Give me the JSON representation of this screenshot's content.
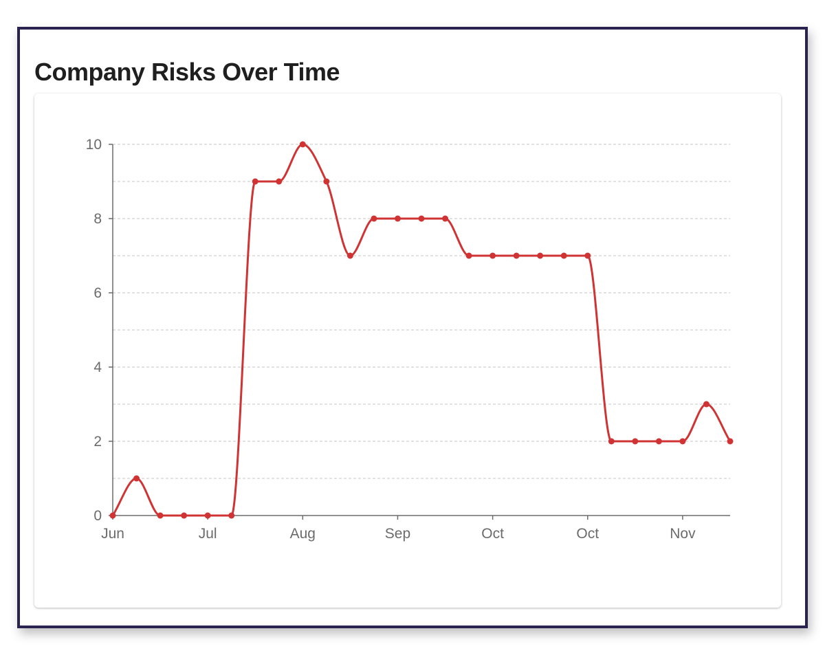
{
  "title": "Company Risks Over Time",
  "chart_data": {
    "type": "line",
    "title": "Company Risks Over Time",
    "xlabel": "",
    "ylabel": "",
    "ylim": [
      0,
      10
    ],
    "y_ticks": [
      0,
      2,
      4,
      6,
      8,
      10
    ],
    "x_tick_labels": [
      "Jun",
      "Jul",
      "Aug",
      "Sep",
      "Oct",
      "Oct",
      "Nov"
    ],
    "grid": "horizontal dashed",
    "line_color": "#d03333",
    "series": [
      {
        "values": [
          0,
          1,
          0,
          0,
          0,
          0,
          9,
          9,
          10,
          9,
          7,
          8,
          8,
          8,
          8,
          7,
          7,
          7,
          7,
          7,
          7,
          2,
          2,
          2,
          2,
          3,
          2
        ]
      }
    ]
  }
}
